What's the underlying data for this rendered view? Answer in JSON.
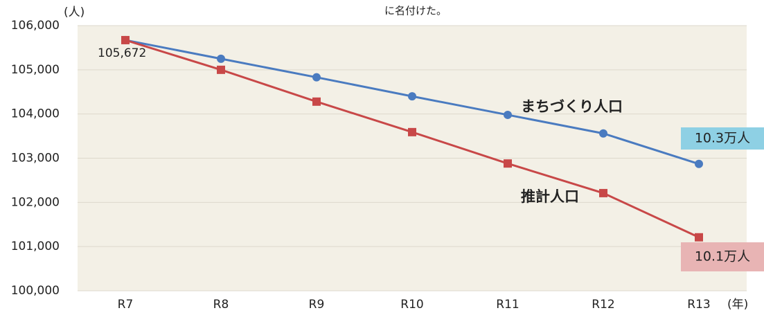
{
  "chart_data": {
    "type": "line",
    "title": "に名付けた。",
    "y_unit": "(人)",
    "x_unit": "(年)",
    "categories": [
      "R7",
      "R8",
      "R9",
      "R10",
      "R11",
      "R12",
      "R13"
    ],
    "series": [
      {
        "name": "まちづくり人口",
        "color": "#4a7bc0",
        "marker": "circle",
        "values": [
          105672,
          105250,
          104830,
          104400,
          103980,
          103560,
          102870
        ],
        "value_labels": [
          "105,672",
          null,
          null,
          null,
          null,
          null,
          "10.3万人"
        ]
      },
      {
        "name": "推計人口",
        "color": "#c84848",
        "marker": "square",
        "values": [
          105672,
          105000,
          104280,
          103590,
          102880,
          102210,
          101210
        ],
        "value_labels": [
          null,
          null,
          null,
          null,
          null,
          null,
          "10.1万人"
        ]
      }
    ],
    "ylim": [
      100000,
      106000
    ],
    "yticks": [
      {
        "value": 100000,
        "label": "100,000"
      },
      {
        "value": 101000,
        "label": "101,000"
      },
      {
        "value": 102000,
        "label": "102,000"
      },
      {
        "value": 103000,
        "label": "103,000"
      },
      {
        "value": 104000,
        "label": "104,000"
      },
      {
        "value": 105000,
        "label": "105,000"
      },
      {
        "value": 106000,
        "label": "106,000"
      }
    ],
    "grid": true
  }
}
